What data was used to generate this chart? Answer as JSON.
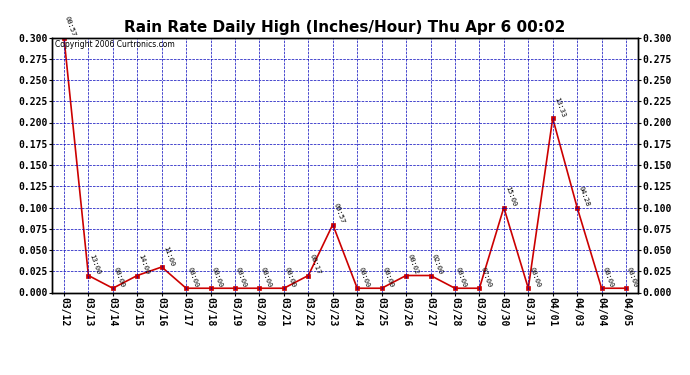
{
  "title": "Rain Rate Daily High (Inches/Hour) Thu Apr 6 00:02",
  "copyright": "Copyright 2006 Curtronics.com",
  "background_color": "#ffffff",
  "plot_bg_color": "#ffffff",
  "grid_color": "#0000bb",
  "line_color": "#cc0000",
  "marker_color": "#cc0000",
  "x_labels": [
    "03/12",
    "03/13",
    "03/14",
    "03/15",
    "03/16",
    "03/17",
    "03/18",
    "03/19",
    "03/20",
    "03/21",
    "03/22",
    "03/23",
    "03/24",
    "03/25",
    "03/26",
    "03/27",
    "03/28",
    "03/29",
    "03/30",
    "03/31",
    "04/01",
    "04/03",
    "04/04",
    "04/05"
  ],
  "y_values": [
    0.3,
    0.02,
    0.005,
    0.02,
    0.03,
    0.005,
    0.005,
    0.005,
    0.005,
    0.005,
    0.02,
    0.08,
    0.005,
    0.005,
    0.02,
    0.02,
    0.005,
    0.005,
    0.1,
    0.005,
    0.205,
    0.1,
    0.005,
    0.005
  ],
  "point_labels": [
    "00:57",
    "13:00",
    "00:00",
    "14:00",
    "11:00",
    "00:00",
    "00:00",
    "00:00",
    "00:00",
    "00:00",
    "00:17",
    "09:57",
    "00:00",
    "00:00",
    "00:02",
    "02:00",
    "00:00",
    "07:00",
    "15:00",
    "00:00",
    "13:33",
    "04:28",
    "00:00",
    "00:00"
  ],
  "ylim": [
    0.0,
    0.3
  ],
  "yticks": [
    0.0,
    0.025,
    0.05,
    0.075,
    0.1,
    0.125,
    0.15,
    0.175,
    0.2,
    0.225,
    0.25,
    0.275,
    0.3
  ],
  "title_fontsize": 11,
  "tick_fontsize": 7,
  "xlabel_rotation": -90
}
